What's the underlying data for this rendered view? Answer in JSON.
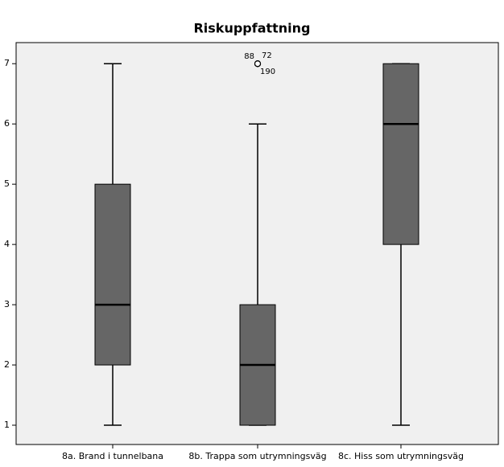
{
  "chart_data": {
    "type": "box",
    "title": "Riskuppfattning",
    "categories": [
      "8a. Brand i tunnelbana",
      "8b. Trappa som utrymningsväg",
      "8c. Hiss som utrymningsväg"
    ],
    "boxes": [
      {
        "min": 1,
        "q1": 2,
        "median": 3,
        "q3": 5,
        "max": 7,
        "outliers": [],
        "outlier_labels": []
      },
      {
        "min": 1,
        "q1": 1,
        "median": 2,
        "q3": 3,
        "max": 6,
        "outliers": [
          7,
          7,
          7
        ],
        "outlier_labels": [
          "88",
          "72",
          "190"
        ]
      },
      {
        "min": 1,
        "q1": 4,
        "median": 6,
        "q3": 7,
        "max": 7,
        "outliers": [],
        "outlier_labels": []
      }
    ],
    "color": "#666666",
    "ylim": [
      0.68,
      7.35
    ],
    "yticks": [
      1,
      2,
      3,
      4,
      5,
      6,
      7
    ]
  }
}
